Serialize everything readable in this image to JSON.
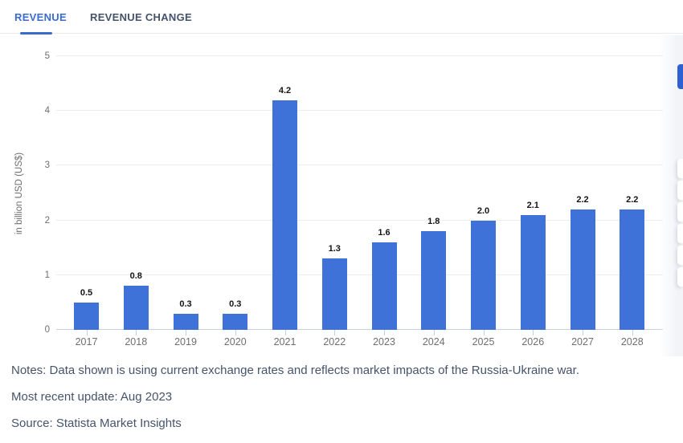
{
  "header": {
    "tabs": [
      {
        "label": "REVENUE",
        "active": true
      },
      {
        "label": "REVENUE CHANGE",
        "active": false
      }
    ]
  },
  "chart_data": {
    "type": "bar",
    "categories": [
      "2017",
      "2018",
      "2019",
      "2020",
      "2021",
      "2022",
      "2023",
      "2024",
      "2025",
      "2026",
      "2027",
      "2028"
    ],
    "values": [
      0.5,
      0.8,
      0.3,
      0.3,
      4.2,
      1.3,
      1.6,
      1.8,
      2.0,
      2.1,
      2.2,
      2.2
    ],
    "value_labels": [
      "0.5",
      "0.8",
      "0.3",
      "0.3",
      "4.2",
      "1.3",
      "1.6",
      "1.8",
      "2.0",
      "2.1",
      "2.2",
      "2.2"
    ],
    "title": "",
    "xlabel": "",
    "ylabel": "in billion USD (US$)",
    "ylim": [
      0,
      5
    ],
    "yticks": [
      0,
      1,
      2,
      3,
      4,
      5
    ],
    "grid": true,
    "legend": false,
    "bar_color": "#3f72d8"
  },
  "footer": {
    "notes": "Notes: Data shown is using current exchange rates and reflects market impacts of the Russia-Ukraine war.",
    "update": "Most recent update: Aug 2023",
    "source": "Source: Statista Market Insights"
  },
  "colors": {
    "accent": "#3a6bd1",
    "bar": "#3f72d8",
    "footer_text": "#46536b",
    "inactive_tab": "#45526b",
    "grid": "#ececec",
    "axis": "#c7d1e3"
  },
  "side_toolbar": {
    "accent_button": 1,
    "button_count": 6
  }
}
